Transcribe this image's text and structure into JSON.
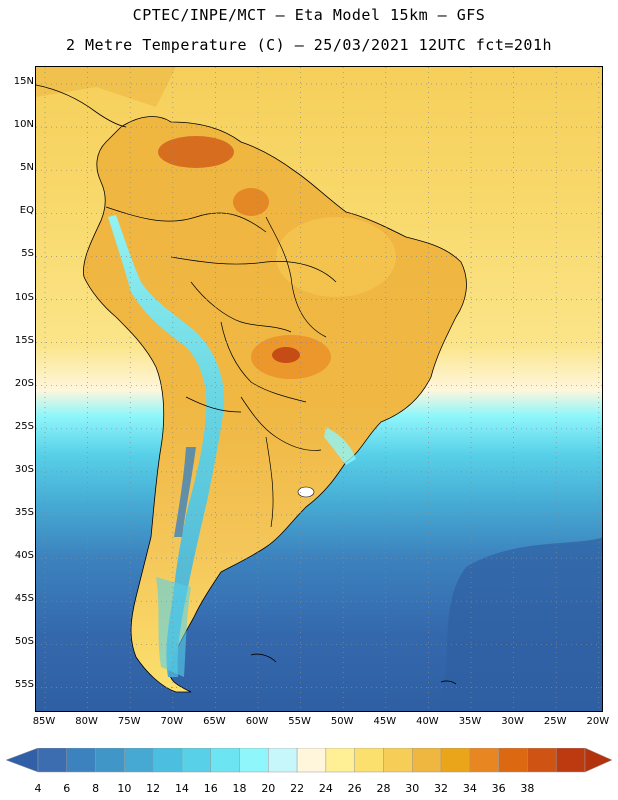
{
  "header": {
    "line1": "CPTEC/INPE/MCT –  Eta Model 15km – GFS",
    "line2": "2 Metre Temperature (C) – 25/03/2021 12UTC fct=201h"
  },
  "axes": {
    "lat_labels": [
      "15N",
      "10N",
      "5N",
      "EQ",
      "5S",
      "10S",
      "15S",
      "20S",
      "25S",
      "30S",
      "35S",
      "40S",
      "45S",
      "50S",
      "55S"
    ],
    "lon_labels": [
      "85W",
      "80W",
      "75W",
      "70W",
      "65W",
      "60W",
      "55W",
      "50W",
      "45W",
      "40W",
      "35W",
      "30W",
      "25W",
      "20W"
    ],
    "gridlines": "dotted"
  },
  "colorbar": {
    "levels": [
      "4",
      "6",
      "8",
      "10",
      "12",
      "14",
      "16",
      "18",
      "20",
      "22",
      "24",
      "26",
      "28",
      "30",
      "32",
      "34",
      "36",
      "38"
    ],
    "colors": [
      "#3b6db0",
      "#3c82be",
      "#4196c8",
      "#45a9d3",
      "#4cbedf",
      "#58d0e8",
      "#6ce4f1",
      "#8ff6fb",
      "#c8f7fb",
      "#fff6dc",
      "#ffef95",
      "#fbe06e",
      "#f6cd57",
      "#efb640",
      "#eba51a",
      "#e88621",
      "#dc6812",
      "#cf5414",
      "#bd3a10"
    ],
    "range_min_color": "#3260a8",
    "range_max_color": "#b3340c"
  },
  "field_colors": {
    "ocean_cold": "#2f5fa3",
    "ocean_cool": "#3e86c2",
    "ocean_mild": "#55c3e2",
    "ocean_warm": "#f7da72",
    "land_warm": "#f2bd4c",
    "land_hot": "#e0701c",
    "andes_cold": "#67dcef",
    "boundaries": "#000000"
  },
  "map_semantics": {
    "region": "South America",
    "icons": [
      "country-boundaries",
      "coastline",
      "lat-lon-grid"
    ]
  }
}
